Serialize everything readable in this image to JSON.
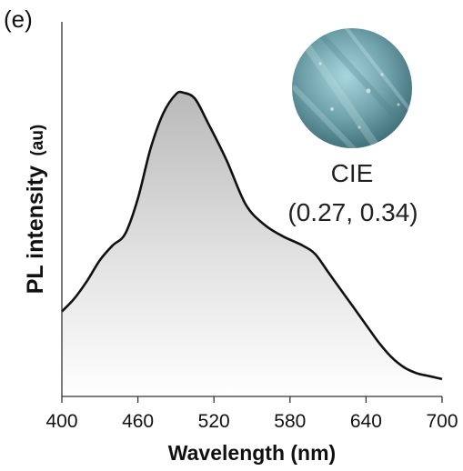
{
  "panel_label": "(e)",
  "chart_data": {
    "type": "area",
    "xlabel": "Wavelength (nm)",
    "ylabel": "PL intensity",
    "ylabel_unit": "(au)",
    "xlim": [
      400,
      700
    ],
    "ylim": [
      0,
      1
    ],
    "xticks": [
      400,
      460,
      520,
      580,
      640,
      700
    ],
    "yticks_shown": false,
    "grid": false,
    "legend": "none",
    "fill": "vertical gradient, light gray near baseline to darker gray at peak",
    "line_color": "#111111",
    "series": [
      {
        "x": [
          400,
          410,
          420,
          430,
          440,
          450,
          460,
          470,
          480,
          490,
          496,
          505,
          515,
          530,
          545,
          560,
          575,
          590,
          600,
          610,
          620,
          630,
          640,
          650,
          660,
          670,
          680,
          690,
          700
        ],
        "values": [
          0.255,
          0.3,
          0.36,
          0.43,
          0.48,
          0.52,
          0.64,
          0.81,
          0.93,
          0.995,
          1.0,
          0.98,
          0.9,
          0.77,
          0.62,
          0.55,
          0.51,
          0.48,
          0.45,
          0.39,
          0.33,
          0.27,
          0.21,
          0.15,
          0.1,
          0.065,
          0.045,
          0.035,
          0.025
        ]
      }
    ],
    "annotations": [
      {
        "text": "CIE"
      },
      {
        "text": "(0.27, 0.34)"
      }
    ],
    "inset": {
      "description_name": "emission-photo",
      "colors": [
        "#8fc3cd",
        "#5b8e97",
        "#3f6f78"
      ]
    }
  }
}
